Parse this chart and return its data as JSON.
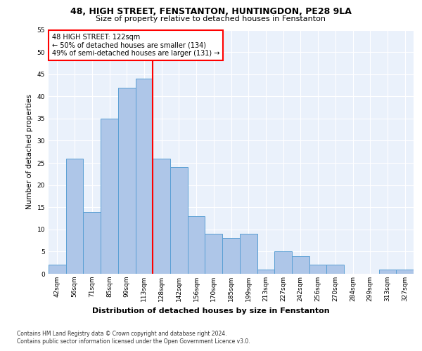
{
  "title1": "48, HIGH STREET, FENSTANTON, HUNTINGDON, PE28 9LA",
  "title2": "Size of property relative to detached houses in Fenstanton",
  "xlabel": "Distribution of detached houses by size in Fenstanton",
  "ylabel": "Number of detached properties",
  "footnote1": "Contains HM Land Registry data © Crown copyright and database right 2024.",
  "footnote2": "Contains public sector information licensed under the Open Government Licence v3.0.",
  "annotation_line1": "48 HIGH STREET: 122sqm",
  "annotation_line2": "← 50% of detached houses are smaller (134)",
  "annotation_line3": "49% of semi-detached houses are larger (131) →",
  "bar_labels": [
    "42sqm",
    "56sqm",
    "71sqm",
    "85sqm",
    "99sqm",
    "113sqm",
    "128sqm",
    "142sqm",
    "156sqm",
    "170sqm",
    "185sqm",
    "199sqm",
    "213sqm",
    "227sqm",
    "242sqm",
    "256sqm",
    "270sqm",
    "284sqm",
    "299sqm",
    "313sqm",
    "327sqm"
  ],
  "bar_values": [
    2,
    26,
    14,
    35,
    42,
    44,
    26,
    24,
    13,
    9,
    8,
    9,
    1,
    5,
    4,
    2,
    2,
    0,
    0,
    1,
    1
  ],
  "bar_color": "#aec6e8",
  "bar_edge_color": "#5a9fd4",
  "red_line_x": 5.5,
  "ylim": [
    0,
    55
  ],
  "yticks": [
    0,
    5,
    10,
    15,
    20,
    25,
    30,
    35,
    40,
    45,
    50,
    55
  ],
  "plot_bg_color": "#eaf1fb",
  "title1_fontsize": 9.0,
  "title2_fontsize": 8.0,
  "ylabel_fontsize": 7.5,
  "xlabel_fontsize": 8.0,
  "tick_fontsize": 6.5,
  "annot_fontsize": 7.0,
  "footnote_fontsize": 5.5
}
